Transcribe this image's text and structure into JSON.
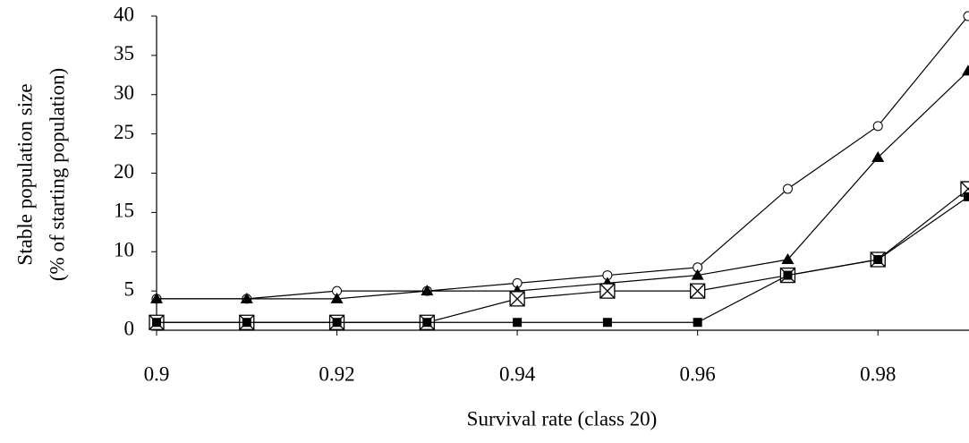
{
  "chart_data": {
    "type": "line",
    "xlabel": "Survival rate (class 20)",
    "ylabel": [
      "Stable population size",
      "(% of starting population)"
    ],
    "x": [
      0.9,
      0.91,
      0.92,
      0.93,
      0.94,
      0.95,
      0.96,
      0.97,
      0.98,
      0.99
    ],
    "series": [
      {
        "marker": "open-circle",
        "color": "#000000",
        "values": [
          4,
          4,
          5,
          5,
          6,
          7,
          8,
          18,
          26,
          40
        ]
      },
      {
        "marker": "filled-triangle",
        "color": "#000000",
        "values": [
          4,
          4,
          4,
          5,
          5,
          6,
          7,
          9,
          22,
          33
        ]
      },
      {
        "marker": "crossed-square",
        "color": "#000000",
        "values": [
          1,
          1,
          1,
          1,
          4,
          5,
          5,
          7,
          9,
          18
        ]
      },
      {
        "marker": "filled-square",
        "color": "#000000",
        "values": [
          1,
          1,
          1,
          1,
          1,
          1,
          1,
          7,
          9,
          17
        ]
      }
    ],
    "xlim": [
      0.9,
      0.99
    ],
    "xticks": [
      0.9,
      0.92,
      0.94,
      0.96,
      0.98
    ],
    "ylim": [
      0,
      40
    ],
    "yticks": [
      0,
      5,
      10,
      15,
      20,
      25,
      30,
      35,
      40
    ],
    "grid": false
  }
}
